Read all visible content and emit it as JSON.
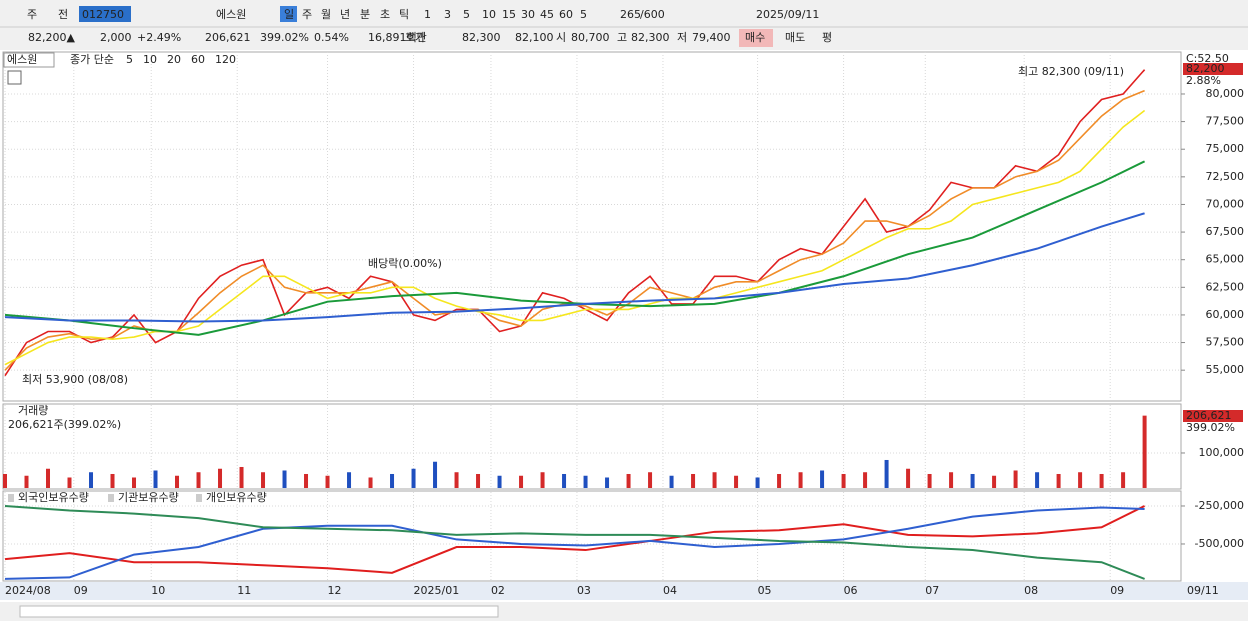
{
  "toolbar": [
    "주",
    "전",
    "012750",
    "에스원",
    "일",
    "주",
    "월",
    "년",
    "분",
    "초",
    "틱",
    "1",
    "3",
    "5",
    "10",
    "15",
    "30",
    "45",
    "60",
    "5",
    "265",
    "/600",
    "2025/09/11"
  ],
  "quote_bar": [
    "82,200▲",
    "2,000",
    "+2.49%",
    "206,621",
    "399.02%",
    "0.54%",
    "16,891백만",
    "호가",
    "82,300",
    "82,100",
    "시",
    "80,700",
    "고",
    "82,300",
    "저",
    "79,400",
    "매수",
    "매도",
    "평"
  ],
  "chart_data": [
    {
      "type": "line",
      "name": "에스원",
      "legend_prefix": "종가 단순",
      "xlim": [
        0,
        273
      ],
      "ylim": [
        52300,
        83800
      ],
      "yticks": [
        {
          "value": 55000,
          "label": "55,000"
        },
        {
          "value": 57500,
          "label": "57,500"
        },
        {
          "value": 60000,
          "label": "60,000"
        },
        {
          "value": 62500,
          "label": "62,500"
        },
        {
          "value": 65000,
          "label": "65,000"
        },
        {
          "value": 67500,
          "label": "67,500"
        },
        {
          "value": 70000,
          "label": "70,000"
        },
        {
          "value": 72500,
          "label": "72,500"
        },
        {
          "value": 75000,
          "label": "75,000"
        },
        {
          "value": 77500,
          "label": "77,500"
        },
        {
          "value": 80000,
          "label": "80,000"
        }
      ],
      "xticks": [
        {
          "value": 0,
          "label": "2024/08"
        },
        {
          "value": 16,
          "label": "09"
        },
        {
          "value": 34,
          "label": "10"
        },
        {
          "value": 54,
          "label": "11"
        },
        {
          "value": 75,
          "label": "12"
        },
        {
          "value": 95,
          "label": "2025/01"
        },
        {
          "value": 113,
          "label": "02"
        },
        {
          "value": 133,
          "label": "03"
        },
        {
          "value": 153,
          "label": "04"
        },
        {
          "value": 175,
          "label": "05"
        },
        {
          "value": 195,
          "label": "06"
        },
        {
          "value": 214,
          "label": "07"
        },
        {
          "value": 237,
          "label": "08"
        },
        {
          "value": 257,
          "label": "09"
        }
      ],
      "x_last_label": "09/11",
      "grid": true,
      "x": [
        0,
        5,
        10,
        15,
        20,
        25,
        30,
        35,
        40,
        45,
        50,
        55,
        60,
        65,
        70,
        75,
        80,
        85,
        90,
        95,
        100,
        105,
        110,
        115,
        120,
        125,
        130,
        135,
        140,
        145,
        150,
        155,
        160,
        165,
        170,
        175,
        180,
        185,
        190,
        195,
        200,
        205,
        210,
        215,
        220,
        225,
        230,
        235,
        240,
        245,
        250,
        255,
        260,
        265
      ],
      "series": [
        {
          "name": "5",
          "color": "#e02020",
          "values": [
            54500,
            57500,
            58500,
            58500,
            57500,
            58000,
            60000,
            57500,
            58500,
            61500,
            63500,
            64500,
            65000,
            60000,
            62000,
            62500,
            61500,
            63500,
            63000,
            60000,
            59500,
            60500,
            60500,
            58500,
            59000,
            62000,
            61500,
            60500,
            59500,
            62000,
            63500,
            61000,
            61000,
            63500,
            63500,
            63000,
            65000,
            66000,
            65500,
            68000,
            70500,
            67500,
            68000,
            69500,
            72000,
            71500,
            71500,
            73500,
            73000,
            74500,
            77500,
            79500,
            80000,
            82200
          ]
        },
        {
          "name": "10",
          "color": "#f08c28",
          "values": [
            55000,
            57000,
            58000,
            58300,
            57800,
            57900,
            59000,
            58500,
            58500,
            60200,
            62000,
            63500,
            64500,
            62500,
            62000,
            62000,
            62000,
            62500,
            63000,
            61500,
            60000,
            60300,
            60500,
            59500,
            59000,
            60500,
            61000,
            60800,
            60000,
            61000,
            62500,
            62000,
            61500,
            62500,
            63000,
            63000,
            64000,
            65000,
            65500,
            66500,
            68500,
            68500,
            68000,
            69000,
            70500,
            71500,
            71500,
            72500,
            73000,
            74000,
            76000,
            78000,
            79500,
            80300
          ]
        },
        {
          "name": "20",
          "color": "#f5e61e",
          "values": [
            55500,
            56500,
            57500,
            58000,
            58000,
            57800,
            58000,
            58500,
            58500,
            59000,
            60500,
            62000,
            63500,
            63500,
            62500,
            61500,
            62000,
            62000,
            62500,
            62500,
            61500,
            60800,
            60300,
            60000,
            59500,
            59500,
            60000,
            60500,
            60500,
            60500,
            61000,
            61500,
            61500,
            61500,
            62000,
            62500,
            63000,
            63500,
            64000,
            65000,
            66000,
            67000,
            67800,
            67800,
            68500,
            70000,
            70500,
            71000,
            71500,
            72000,
            73000,
            75000,
            77000,
            78500
          ]
        },
        {
          "name": "60",
          "color": "#1a9a3a",
          "x": [
            0,
            15,
            30,
            45,
            60,
            75,
            90,
            105,
            120,
            135,
            150,
            165,
            180,
            195,
            210,
            225,
            240,
            255,
            265
          ],
          "values": [
            60000,
            59500,
            58800,
            58200,
            59500,
            61200,
            61700,
            62000,
            61300,
            61000,
            60800,
            61000,
            62000,
            63500,
            65500,
            67000,
            69500,
            72000,
            73900
          ]
        },
        {
          "name": "120",
          "color": "#2f5fd0",
          "x": [
            0,
            15,
            30,
            45,
            60,
            75,
            90,
            105,
            120,
            135,
            150,
            165,
            180,
            195,
            210,
            225,
            240,
            255,
            265
          ],
          "values": [
            59800,
            59500,
            59500,
            59400,
            59500,
            59800,
            60200,
            60300,
            60600,
            61000,
            61300,
            61500,
            62000,
            62800,
            63300,
            64500,
            66000,
            68000,
            69200
          ]
        }
      ],
      "right_labels": [
        "C:52.50",
        "82,200",
        "2.88%"
      ],
      "annotations": [
        "최고 82,300 (09/11)",
        "최저 53,900 (08/08)",
        "배당락(0.00%)"
      ]
    },
    {
      "type": "bar",
      "title": "거래량",
      "subtitle": "206,621주(399.02%)",
      "xlim": [
        0,
        273
      ],
      "ylim": [
        0,
        237000
      ],
      "yticks": [
        {
          "value": 100000,
          "label": "100,000"
        }
      ],
      "x": [
        0,
        5,
        10,
        15,
        20,
        25,
        30,
        35,
        40,
        45,
        50,
        55,
        60,
        65,
        70,
        75,
        80,
        85,
        90,
        95,
        100,
        105,
        110,
        115,
        120,
        125,
        130,
        135,
        140,
        145,
        150,
        155,
        160,
        165,
        170,
        175,
        180,
        185,
        190,
        195,
        200,
        205,
        210,
        215,
        220,
        225,
        230,
        235,
        240,
        245,
        250,
        255,
        260,
        265
      ],
      "values": [
        40000,
        35000,
        55000,
        30000,
        45000,
        40000,
        30000,
        50000,
        35000,
        45000,
        55000,
        60000,
        45000,
        50000,
        40000,
        35000,
        45000,
        30000,
        40000,
        55000,
        75000,
        45000,
        40000,
        35000,
        35000,
        45000,
        40000,
        35000,
        30000,
        40000,
        45000,
        35000,
        40000,
        45000,
        35000,
        30000,
        40000,
        45000,
        50000,
        40000,
        45000,
        80000,
        55000,
        40000,
        45000,
        40000,
        35000,
        50000,
        45000,
        40000,
        45000,
        40000,
        45000,
        206621
      ],
      "up_color": "#d42a2a",
      "down_color": "#1f4fbf",
      "right_labels": [
        "206,621",
        "399.02%"
      ]
    },
    {
      "type": "line",
      "xlim": [
        0,
        273
      ],
      "ylim": [
        -737000,
        -158000
      ],
      "yticks": [
        {
          "value": -250000,
          "label": "-250,000"
        },
        {
          "value": -500000,
          "label": "-500,000"
        }
      ],
      "x": [
        0,
        15,
        30,
        45,
        60,
        75,
        90,
        105,
        120,
        135,
        150,
        165,
        180,
        195,
        210,
        225,
        240,
        255,
        265
      ],
      "series": [
        {
          "name": "외국인보유수량",
          "color": "#e01e1e",
          "values": [
            -600000,
            -560000,
            -620000,
            -620000,
            -640000,
            -660000,
            -690000,
            -520000,
            -520000,
            -540000,
            -480000,
            -420000,
            -410000,
            -370000,
            -440000,
            -450000,
            -430000,
            -390000,
            -250000
          ]
        },
        {
          "name": "기관보유수량",
          "color": "#2f5fd0",
          "values": [
            -730000,
            -720000,
            -570000,
            -520000,
            -400000,
            -380000,
            -380000,
            -470000,
            -500000,
            -510000,
            -480000,
            -520000,
            -500000,
            -470000,
            -400000,
            -320000,
            -280000,
            -260000,
            -270000
          ]
        },
        {
          "name": "개인보유수량",
          "color": "#2e8b57",
          "values": [
            -250000,
            -280000,
            -300000,
            -330000,
            -390000,
            -400000,
            -410000,
            -440000,
            -430000,
            -440000,
            -440000,
            -460000,
            -480000,
            -490000,
            -520000,
            -540000,
            -590000,
            -620000,
            -730000
          ]
        }
      ]
    }
  ]
}
